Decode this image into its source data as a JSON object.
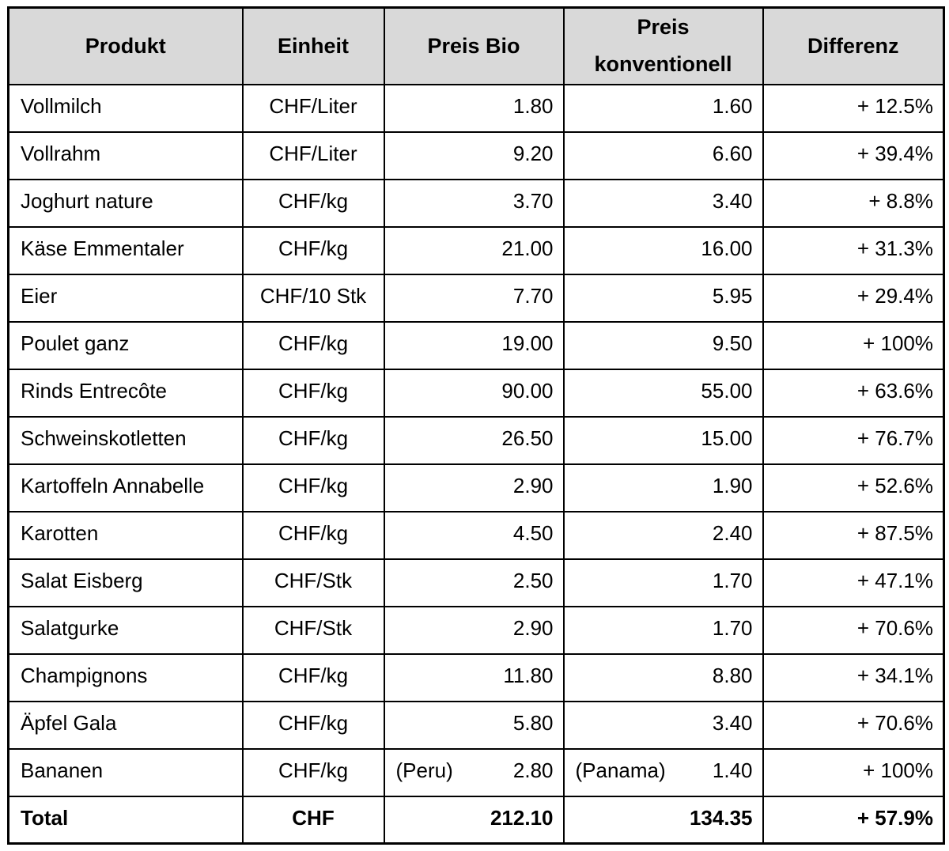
{
  "colors": {
    "header_bg": "#d9d9d9",
    "border": "#000000",
    "text": "#000000",
    "background": "#ffffff"
  },
  "table": {
    "columns": [
      {
        "key": "produkt",
        "label": "Produkt"
      },
      {
        "key": "einheit",
        "label": "Einheit"
      },
      {
        "key": "preis-bio",
        "label": "Preis Bio"
      },
      {
        "key": "preis-konventionell",
        "label": "Preis konventionell"
      },
      {
        "key": "differenz",
        "label": "Differenz"
      }
    ],
    "rows": [
      {
        "produkt": "Vollmilch",
        "einheit": "CHF/Liter",
        "bio": "1.80",
        "konv": "1.60",
        "diff": "+ 12.5%"
      },
      {
        "produkt": "Vollrahm",
        "einheit": "CHF/Liter",
        "bio": "9.20",
        "konv": "6.60",
        "diff": "+ 39.4%"
      },
      {
        "produkt": "Joghurt nature",
        "einheit": "CHF/kg",
        "bio": "3.70",
        "konv": "3.40",
        "diff": "+ 8.8%"
      },
      {
        "produkt": "Käse Emmentaler",
        "einheit": "CHF/kg",
        "bio": "21.00",
        "konv": "16.00",
        "diff": "+ 31.3%"
      },
      {
        "produkt": "Eier",
        "einheit": "CHF/10 Stk",
        "bio": "7.70",
        "konv": "5.95",
        "diff": "+ 29.4%"
      },
      {
        "produkt": "Poulet ganz",
        "einheit": "CHF/kg",
        "bio": "19.00",
        "konv": "9.50",
        "diff": "+ 100%"
      },
      {
        "produkt": "Rinds Entrecôte",
        "einheit": "CHF/kg",
        "bio": "90.00",
        "konv": "55.00",
        "diff": "+ 63.6%"
      },
      {
        "produkt": "Schweinskotletten",
        "einheit": "CHF/kg",
        "bio": "26.50",
        "konv": "15.00",
        "diff": "+ 76.7%"
      },
      {
        "produkt": "Kartoffeln Annabelle",
        "einheit": "CHF/kg",
        "bio": "2.90",
        "konv": "1.90",
        "diff": "+ 52.6%"
      },
      {
        "produkt": "Karotten",
        "einheit": "CHF/kg",
        "bio": "4.50",
        "konv": "2.40",
        "diff": "+ 87.5%"
      },
      {
        "produkt": "Salat Eisberg",
        "einheit": "CHF/Stk",
        "bio": "2.50",
        "konv": "1.70",
        "diff": "+ 47.1%"
      },
      {
        "produkt": "Salatgurke",
        "einheit": "CHF/Stk",
        "bio": "2.90",
        "konv": "1.70",
        "diff": "+ 70.6%"
      },
      {
        "produkt": "Champignons",
        "einheit": "CHF/kg",
        "bio": "11.80",
        "konv": "8.80",
        "diff": "+ 34.1%"
      },
      {
        "produkt": "Äpfel Gala",
        "einheit": "CHF/kg",
        "bio": "5.80",
        "konv": "3.40",
        "diff": "+ 70.6%"
      },
      {
        "produkt": "Bananen",
        "einheit": "CHF/kg",
        "bio_note": "(Peru)",
        "bio": "2.80",
        "konv_note": "(Panama)",
        "konv": "1.40",
        "diff": "+ 100%"
      }
    ],
    "total_row": {
      "produkt": "Total",
      "einheit": "CHF",
      "bio": "212.10",
      "konv": "134.35",
      "diff": "+ 57.9%"
    }
  }
}
